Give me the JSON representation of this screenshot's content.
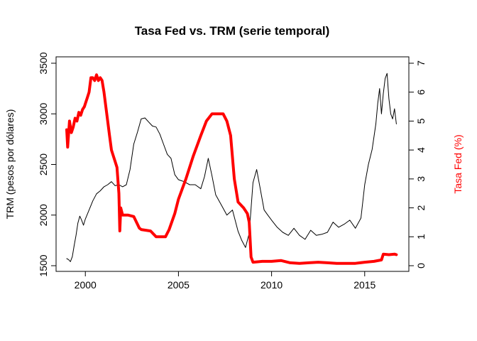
{
  "chart_data": {
    "type": "line",
    "title": "Tasa Fed vs. TRM (serie temporal)",
    "xlabel": "",
    "ylabel_left": "TRM (pesos por dólares)",
    "ylabel_right": "Tasa Fed (%)",
    "xlim": [
      1999.0,
      2016.8
    ],
    "ylim_left": [
      1500,
      3500
    ],
    "ylim_right": [
      0,
      7
    ],
    "x_ticks": [
      2000,
      2005,
      2010,
      2015
    ],
    "x_tick_labels": [
      "2000",
      "2005",
      "2010",
      "2015"
    ],
    "y_left_ticks": [
      1500,
      2000,
      2500,
      3000,
      3500
    ],
    "y_left_tick_labels": [
      "1500",
      "2000",
      "2500",
      "3000",
      "3500"
    ],
    "y_right_ticks": [
      0,
      1,
      2,
      3,
      4,
      5,
      6,
      7
    ],
    "y_right_tick_labels": [
      "0",
      "1",
      "2",
      "3",
      "4",
      "5",
      "6",
      "7"
    ],
    "grid": false,
    "colors": {
      "trm": "#000000",
      "fed": "#ff0000"
    },
    "series": [
      {
        "axis": "left",
        "x": [
          1999.0,
          1999.1,
          1999.2,
          1999.3,
          1999.4,
          1999.5,
          1999.6,
          1999.7,
          1999.8,
          1999.9,
          2000.0,
          2000.2,
          2000.4,
          2000.6,
          2000.8,
          2001.0,
          2001.2,
          2001.4,
          2001.6,
          2001.8,
          2002.0,
          2002.2,
          2002.4,
          2002.6,
          2002.8,
          2003.0,
          2003.2,
          2003.4,
          2003.6,
          2003.8,
          2004.0,
          2004.2,
          2004.4,
          2004.6,
          2004.8,
          2005.0,
          2005.3,
          2005.6,
          2005.9,
          2006.2,
          2006.4,
          2006.6,
          2006.8,
          2007.0,
          2007.3,
          2007.6,
          2007.9,
          2008.2,
          2008.4,
          2008.6,
          2008.8,
          2009.0,
          2009.2,
          2009.4,
          2009.6,
          2009.8,
          2010.0,
          2010.3,
          2010.6,
          2010.9,
          2011.2,
          2011.5,
          2011.8,
          2012.1,
          2012.4,
          2012.7,
          2013.0,
          2013.3,
          2013.6,
          2013.9,
          2014.2,
          2014.5,
          2014.8,
          2015.0,
          2015.2,
          2015.4,
          2015.6,
          2015.7,
          2015.8,
          2015.9,
          2016.0,
          2016.1,
          2016.2,
          2016.3,
          2016.4,
          2016.5,
          2016.6,
          2016.7
        ],
        "values": [
          1570,
          1560,
          1540,
          1590,
          1700,
          1800,
          1920,
          1990,
          1950,
          1900,
          1960,
          2050,
          2140,
          2210,
          2240,
          2280,
          2300,
          2330,
          2290,
          2300,
          2280,
          2300,
          2450,
          2700,
          2820,
          2950,
          2960,
          2920,
          2880,
          2870,
          2800,
          2700,
          2600,
          2560,
          2400,
          2350,
          2330,
          2300,
          2300,
          2260,
          2380,
          2560,
          2390,
          2200,
          2100,
          2000,
          2050,
          1840,
          1750,
          1680,
          1820,
          2320,
          2450,
          2250,
          2050,
          2000,
          1950,
          1880,
          1830,
          1800,
          1870,
          1800,
          1760,
          1850,
          1800,
          1810,
          1830,
          1930,
          1880,
          1910,
          1950,
          1870,
          1970,
          2300,
          2500,
          2650,
          2900,
          3100,
          3250,
          3000,
          3200,
          3350,
          3400,
          3150,
          3000,
          2950,
          3050,
          2900
        ]
      },
      {
        "axis": "right",
        "x": [
          1999.0,
          1999.05,
          1999.15,
          1999.25,
          1999.35,
          1999.45,
          1999.55,
          1999.65,
          1999.75,
          1999.85,
          1999.95,
          2000.0,
          2000.1,
          2000.2,
          2000.3,
          2000.4,
          2000.5,
          2000.6,
          2000.7,
          2000.8,
          2000.9,
          2001.0,
          2001.1,
          2001.2,
          2001.3,
          2001.4,
          2001.5,
          2001.6,
          2001.7,
          2001.8,
          2001.85,
          2001.9,
          2002.0,
          2002.3,
          2002.6,
          2002.9,
          2003.0,
          2003.5,
          2003.8,
          2004.0,
          2004.3,
          2004.5,
          2004.8,
          2005.0,
          2005.4,
          2005.8,
          2006.2,
          2006.5,
          2006.8,
          2007.0,
          2007.4,
          2007.6,
          2007.8,
          2008.0,
          2008.2,
          2008.5,
          2008.7,
          2008.8,
          2008.9,
          2009.0,
          2009.5,
          2010.0,
          2010.5,
          2011.0,
          2011.5,
          2012.0,
          2012.5,
          2013.0,
          2013.5,
          2014.0,
          2014.5,
          2015.0,
          2015.5,
          2015.9,
          2016.0,
          2016.3,
          2016.6,
          2016.7
        ],
        "values": [
          4.7,
          4.1,
          5.0,
          4.6,
          4.8,
          5.1,
          5.0,
          5.3,
          5.2,
          5.4,
          5.5,
          5.6,
          5.8,
          6.0,
          6.5,
          6.5,
          6.4,
          6.6,
          6.4,
          6.5,
          6.4,
          6.0,
          5.5,
          5.0,
          4.5,
          4.0,
          3.8,
          3.6,
          3.4,
          2.5,
          1.2,
          2.0,
          1.75,
          1.75,
          1.7,
          1.3,
          1.25,
          1.2,
          1.0,
          1.0,
          1.0,
          1.25,
          1.8,
          2.3,
          3.0,
          3.8,
          4.5,
          5.0,
          5.25,
          5.25,
          5.25,
          5.0,
          4.5,
          3.0,
          2.2,
          2.0,
          1.8,
          1.5,
          0.3,
          0.12,
          0.15,
          0.15,
          0.18,
          0.1,
          0.08,
          0.1,
          0.12,
          0.1,
          0.08,
          0.08,
          0.08,
          0.12,
          0.15,
          0.2,
          0.4,
          0.38,
          0.4,
          0.38
        ]
      }
    ]
  }
}
